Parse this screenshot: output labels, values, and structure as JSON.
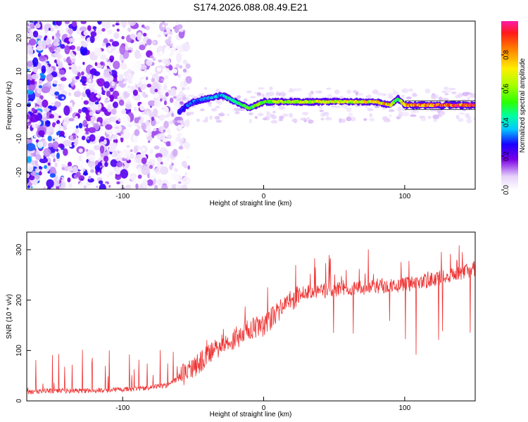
{
  "chart_data": [
    {
      "type": "heatmap",
      "title": "S174.2026.088.08.49.E21",
      "xlabel": "Height of straight line (km)",
      "ylabel": "Frequency (Hz)",
      "xlim": [
        -168,
        150
      ],
      "ylim": [
        -25,
        25
      ],
      "xticks": [
        -100,
        0,
        100
      ],
      "xtick_labels": [
        "-100",
        "0",
        "100"
      ],
      "yticks": [
        -20,
        -10,
        0,
        10,
        20
      ],
      "ytick_labels": [
        "-20",
        "-10",
        "0",
        "10",
        "20"
      ],
      "colorbar": {
        "label": "Normalized spectral amplitude",
        "range": [
          0,
          1
        ],
        "ticks": [
          0.0,
          0.2,
          0.4,
          0.6,
          0.8
        ],
        "tick_labels": [
          "0.0",
          "0.2",
          "0.4",
          "0.6",
          "0.8"
        ]
      },
      "ridge": {
        "x": [
          -60,
          -50,
          -40,
          -30,
          -25,
          -20,
          -15,
          -10,
          -5,
          0,
          10,
          20,
          40,
          60,
          80,
          90,
          95,
          100,
          110,
          120,
          130,
          140,
          150
        ],
        "frequency": [
          -2,
          1,
          2,
          3,
          2,
          1,
          0,
          -1,
          0,
          1,
          1,
          1,
          1,
          1,
          1,
          0,
          2,
          0,
          0,
          0,
          0,
          0,
          0
        ],
        "amplitude": [
          0.3,
          0.35,
          0.4,
          0.4,
          0.45,
          0.5,
          0.55,
          0.6,
          0.6,
          0.65,
          0.7,
          0.7,
          0.75,
          0.75,
          0.8,
          0.85,
          0.5,
          0.9,
          0.95,
          1.0,
          1.0,
          1.0,
          1.0
        ]
      },
      "grid": false
    },
    {
      "type": "line",
      "title": "",
      "xlabel": "Height of straight line (km)",
      "ylabel": "SNR (10 * v/v)",
      "xlim": [
        -168,
        150
      ],
      "ylim": [
        0,
        335
      ],
      "xticks": [
        -100,
        0,
        100
      ],
      "xtick_labels": [
        "-100",
        "0",
        "100"
      ],
      "yticks": [
        0,
        100,
        200,
        300
      ],
      "ytick_labels": [
        "0",
        "100",
        "200",
        "300"
      ],
      "color": "#ee3333",
      "series": [
        {
          "name": "SNR",
          "x": [
            -168,
            -150,
            -130,
            -110,
            -90,
            -70,
            -60,
            -50,
            -40,
            -30,
            -20,
            -10,
            0,
            10,
            20,
            25,
            30,
            40,
            50,
            60,
            70,
            80,
            90,
            100,
            110,
            120,
            130,
            140,
            150
          ],
          "values": [
            18,
            20,
            20,
            22,
            24,
            30,
            45,
            65,
            90,
            110,
            125,
            140,
            150,
            175,
            200,
            210,
            215,
            218,
            220,
            222,
            225,
            228,
            230,
            230,
            235,
            240,
            248,
            255,
            262
          ]
        }
      ],
      "grid": false
    }
  ]
}
